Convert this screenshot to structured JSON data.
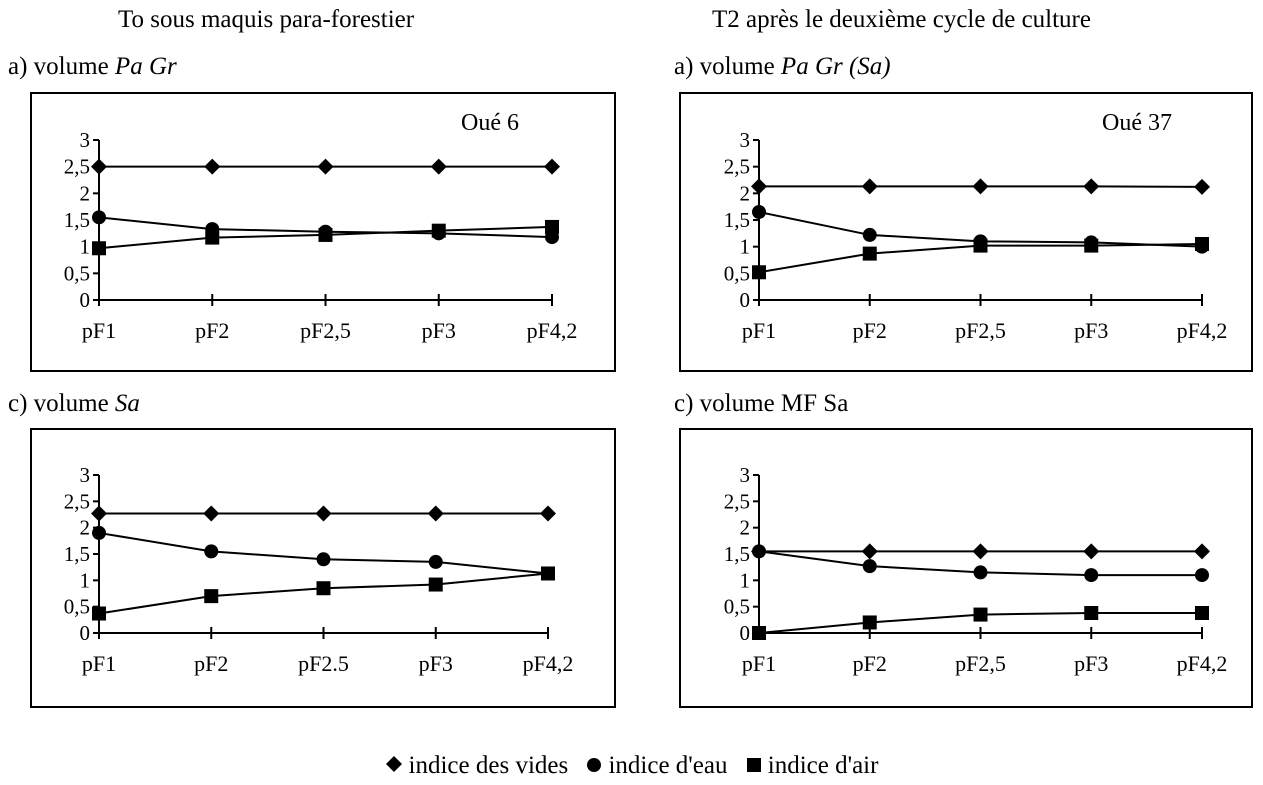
{
  "headers": {
    "left": "To sous maquis para-forestier",
    "right": "T2 après le deuxième cycle  de culture"
  },
  "legend": {
    "vides_label": "indice des vides",
    "eau_label": "indice d'eau",
    "air_label": "indice d'air"
  },
  "chart_data": [
    {
      "type": "line",
      "label_prefix": "a) volume ",
      "label_italic": "Pa Gr",
      "annotation": "Oué 6",
      "categories": [
        "pF1",
        "pF2",
        "pF2,5",
        "pF3",
        "pF4,2"
      ],
      "yticks": [
        "0",
        "0,5",
        "1",
        "1,5",
        "2",
        "2,5",
        "3"
      ],
      "ylim": [
        0,
        3
      ],
      "series": [
        {
          "name": "indice des vides",
          "marker": "diamond",
          "values": [
            2.5,
            2.5,
            2.5,
            2.5,
            2.5
          ]
        },
        {
          "name": "indice d'eau",
          "marker": "circle",
          "values": [
            1.55,
            1.33,
            1.28,
            1.25,
            1.18
          ]
        },
        {
          "name": "indice d'air",
          "marker": "square",
          "values": [
            0.97,
            1.17,
            1.22,
            1.3,
            1.37
          ]
        }
      ]
    },
    {
      "type": "line",
      "label_prefix": "a) volume ",
      "label_italic": "Pa Gr (Sa)",
      "annotation": "Oué 37",
      "categories": [
        "pF1",
        "pF2",
        "pF2,5",
        "pF3",
        "pF4,2"
      ],
      "yticks": [
        "0",
        "0,5",
        "1",
        "1,5",
        "2",
        "2,5",
        "3"
      ],
      "ylim": [
        0,
        3
      ],
      "series": [
        {
          "name": "indice des vides",
          "marker": "diamond",
          "values": [
            2.13,
            2.13,
            2.13,
            2.13,
            2.12
          ]
        },
        {
          "name": "indice d'eau",
          "marker": "circle",
          "values": [
            1.65,
            1.22,
            1.1,
            1.08,
            1.0
          ]
        },
        {
          "name": "indice d'air",
          "marker": "square",
          "values": [
            0.52,
            0.87,
            1.02,
            1.02,
            1.05
          ]
        }
      ]
    },
    {
      "type": "line",
      "label_prefix": "c) volume ",
      "label_italic": "Sa",
      "annotation": "",
      "categories": [
        "pF1",
        "pF2",
        "pF2.5",
        "pF3",
        "pF4,2"
      ],
      "yticks": [
        "0",
        "0,5",
        "1",
        "1,5",
        "2",
        "2,5",
        "3"
      ],
      "ylim": [
        0,
        3
      ],
      "series": [
        {
          "name": "indice des vides",
          "marker": "diamond",
          "values": [
            2.27,
            2.27,
            2.27,
            2.27,
            2.27
          ]
        },
        {
          "name": "indice d'eau",
          "marker": "circle",
          "values": [
            1.9,
            1.55,
            1.4,
            1.35,
            1.13
          ]
        },
        {
          "name": "indice d'air",
          "marker": "square",
          "values": [
            0.37,
            0.7,
            0.85,
            0.92,
            1.13
          ]
        }
      ]
    },
    {
      "type": "line",
      "label_prefix": "c) volume MF Sa",
      "label_italic": "",
      "annotation": "",
      "categories": [
        "pF1",
        "pF2",
        "pF2,5",
        "pF3",
        "pF4,2"
      ],
      "yticks": [
        "0",
        "0,5",
        "1",
        "1,5",
        "2",
        "2,5",
        "3"
      ],
      "ylim": [
        0,
        3
      ],
      "series": [
        {
          "name": "indice des vides",
          "marker": "diamond",
          "values": [
            1.55,
            1.55,
            1.55,
            1.55,
            1.55
          ]
        },
        {
          "name": "indice d'eau",
          "marker": "circle",
          "values": [
            1.55,
            1.27,
            1.15,
            1.1,
            1.1
          ]
        },
        {
          "name": "indice d'air",
          "marker": "square",
          "values": [
            0.0,
            0.2,
            0.35,
            0.38,
            0.38
          ]
        }
      ]
    }
  ]
}
